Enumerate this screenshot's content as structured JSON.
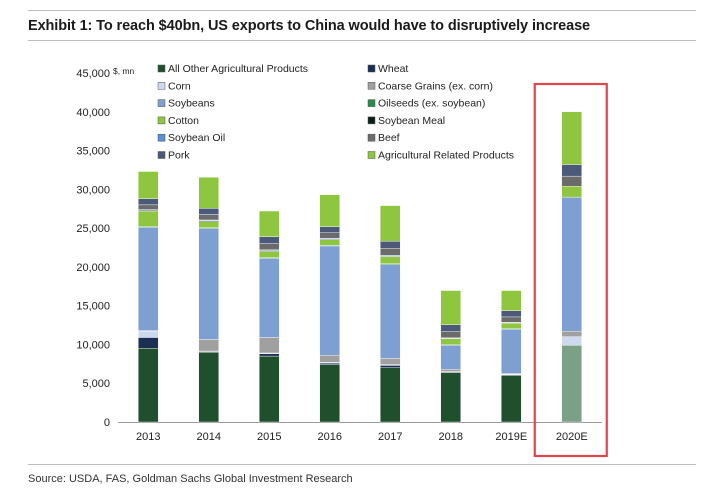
{
  "title": "Exhibit 1: To reach $40bn, US exports to China would have to disruptively increase",
  "source": "Source: USDA, FAS, Goldman Sachs Global Investment Research",
  "chart_data": {
    "type": "bar",
    "stacked": true,
    "unit_label": "$, mn",
    "categories": [
      "2013",
      "2014",
      "2015",
      "2016",
      "2017",
      "2018",
      "2019E",
      "2020E"
    ],
    "ylim": [
      0,
      45000
    ],
    "yticks": [
      "0",
      "5,000",
      "10,000",
      "15,000",
      "20,000",
      "25,000",
      "30,000",
      "35,000",
      "40,000",
      "45,000"
    ],
    "ytick_values": [
      0,
      5000,
      10000,
      15000,
      20000,
      25000,
      30000,
      35000,
      40000,
      45000
    ],
    "legend_position": "top",
    "highlight": "2020E",
    "series": [
      {
        "name": "All Other Agricultural Products",
        "color": "#1f4f2d",
        "values": [
          9500,
          9000,
          8500,
          7400,
          7000,
          6400,
          6000,
          9900
        ]
      },
      {
        "name": "Wheat",
        "color": "#1b2f55",
        "values": [
          1400,
          100,
          300,
          200,
          300,
          50,
          100,
          0
        ]
      },
      {
        "name": "Corn",
        "color": "#ccd9ee",
        "values": [
          800,
          50,
          100,
          100,
          100,
          50,
          50,
          1100
        ]
      },
      {
        "name": "Coarse Grains (ex. corn)",
        "color": "#a0a0a0",
        "values": [
          100,
          1500,
          2000,
          900,
          800,
          300,
          100,
          700
        ]
      },
      {
        "name": "Soybeans",
        "color": "#7e9fd2",
        "values": [
          13300,
          14300,
          10200,
          14100,
          12100,
          3100,
          5700,
          17300
        ]
      },
      {
        "name": "Oilseeds (ex. soybean)",
        "color": "#2a8a4a",
        "values": [
          100,
          100,
          100,
          100,
          100,
          50,
          100,
          0
        ]
      },
      {
        "name": "Cotton",
        "color": "#8ec63f",
        "values": [
          2000,
          800,
          800,
          700,
          900,
          800,
          700,
          1400
        ]
      },
      {
        "name": "Soybean Meal",
        "color": "#0c1f16",
        "values": [
          100,
          100,
          100,
          100,
          100,
          50,
          50,
          0
        ]
      },
      {
        "name": "Soybean Oil",
        "color": "#5b8fd6",
        "values": [
          100,
          100,
          100,
          100,
          100,
          50,
          50,
          0
        ]
      },
      {
        "name": "Beef",
        "color": "#6b6b6b",
        "values": [
          600,
          700,
          800,
          700,
          900,
          800,
          700,
          1300
        ]
      },
      {
        "name": "Pork",
        "color": "#4a5a78",
        "values": [
          800,
          800,
          900,
          800,
          900,
          900,
          800,
          1500
        ]
      },
      {
        "name": "Agricultural Related Products",
        "color": "#8ec63f",
        "values": [
          3500,
          4000,
          3300,
          4100,
          4600,
          4400,
          2600,
          6800
        ]
      }
    ]
  }
}
